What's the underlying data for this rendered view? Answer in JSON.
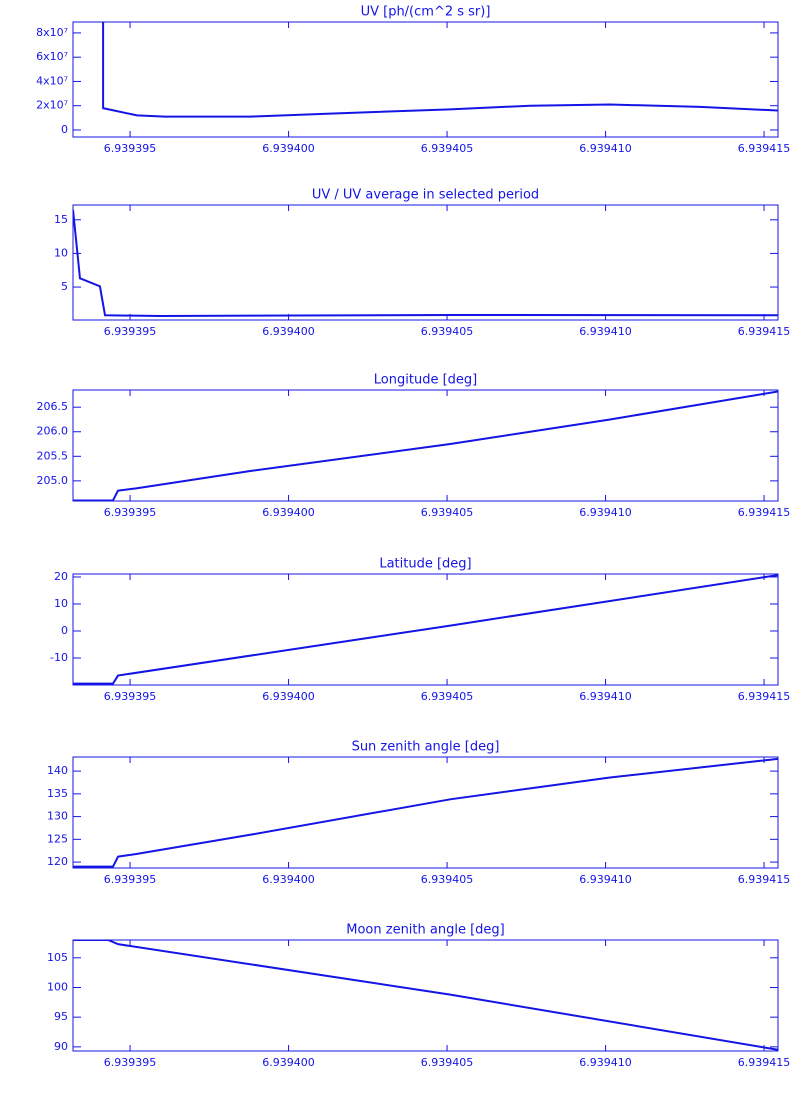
{
  "chart_data": [
    {
      "type": "line",
      "title": "UV [ph/(cm^2 s sr)]",
      "color": "#1414e6",
      "x": [
        6.93939415,
        6.93939415,
        6.93939522,
        6.9393961,
        6.93939879,
        6.93940131,
        6.9394051,
        6.93940762,
        6.93941014,
        6.93941298,
        6.93941544
      ],
      "values": [
        89000000,
        18000000,
        12000000,
        11000000,
        11000000,
        13500000,
        17000000,
        20000000,
        21000000,
        19000000,
        16000000
      ],
      "xlim": [
        6.9393932,
        6.93941544
      ],
      "xticks": [
        6.939395,
        {
          "value": 6.9394,
          "label": "6.939400"
        },
        6.939405,
        {
          "value": 6.93941,
          "label": "6.939410"
        },
        6.939415
      ],
      "ylim": [
        -5800000,
        89000000
      ],
      "yticks": [
        0,
        {
          "value": 20000000,
          "label": "2x10⁷"
        },
        {
          "value": 40000000,
          "label": "4x10⁷"
        },
        {
          "value": 60000000,
          "label": "6x10⁷"
        },
        {
          "value": 80000000,
          "label": "8x10⁷"
        }
      ]
    },
    {
      "type": "line",
      "title": "UV / UV average in selected period",
      "color": "#1414e6",
      "x": [
        6.9393932,
        6.93939342,
        6.93939405,
        6.93939421,
        6.93939595,
        6.9394051,
        6.93941544
      ],
      "values": [
        16.5,
        6.3,
        5.1,
        0.8,
        0.7,
        0.85,
        0.8
      ],
      "xlim": [
        6.9393932,
        6.93941544
      ],
      "xticks": [
        6.939395,
        {
          "value": 6.9394,
          "label": "6.939400"
        },
        6.939405,
        {
          "value": 6.93941,
          "label": "6.939410"
        },
        6.939415
      ],
      "ylim": [
        0.1,
        17.2
      ],
      "yticks": [
        5,
        10,
        15
      ]
    },
    {
      "type": "line",
      "title": "Longitude [deg]",
      "color": "#1414e6",
      "x": [
        6.9393932,
        6.93939446,
        6.93939462,
        6.93939522,
        6.93939879,
        6.9394051,
        6.93940762,
        6.93941014,
        6.93941544
      ],
      "values": [
        204.6,
        204.6,
        204.8,
        204.85,
        205.2,
        205.75,
        206.0,
        206.25,
        206.82
      ],
      "xlim": [
        6.9393932,
        6.93941544
      ],
      "xticks": [
        6.939395,
        {
          "value": 6.9394,
          "label": "6.939400"
        },
        6.939405,
        {
          "value": 6.93941,
          "label": "6.939410"
        },
        6.939415
      ],
      "ylim": [
        204.59,
        206.85
      ],
      "yticks": [
        {
          "value": 205,
          "label": "205.0"
        },
        205.5,
        {
          "value": 206,
          "label": "206.0"
        },
        206.5
      ]
    },
    {
      "type": "line",
      "title": "Latitude [deg]",
      "color": "#1414e6",
      "x": [
        6.9393932,
        6.93939446,
        6.93939462,
        6.9394051,
        6.93941544
      ],
      "values": [
        -19.5,
        -19.5,
        -16.5,
        2,
        20.7
      ],
      "xlim": [
        6.9393932,
        6.93941544
      ],
      "xticks": [
        6.939395,
        {
          "value": 6.9394,
          "label": "6.939400"
        },
        6.939405,
        {
          "value": 6.93941,
          "label": "6.939410"
        },
        6.939415
      ],
      "ylim": [
        -20,
        21.1
      ],
      "yticks": [
        -10,
        0,
        10,
        20
      ]
    },
    {
      "type": "line",
      "title": "Sun zenith angle [deg]",
      "color": "#1414e6",
      "x": [
        6.9393932,
        6.93939446,
        6.93939462,
        6.93939522,
        6.93939879,
        6.9394051,
        6.93941014,
        6.93941544
      ],
      "values": [
        119,
        119,
        121.2,
        121.8,
        126,
        133.8,
        138.6,
        142.7
      ],
      "xlim": [
        6.9393932,
        6.93941544
      ],
      "xticks": [
        6.939395,
        {
          "value": 6.9394,
          "label": "6.939400"
        },
        6.939405,
        {
          "value": 6.93941,
          "label": "6.939410"
        },
        6.939415
      ],
      "ylim": [
        118.7,
        143.1
      ],
      "yticks": [
        120,
        125,
        130,
        135,
        140
      ]
    },
    {
      "type": "line",
      "title": "Moon zenith angle [deg]",
      "color": "#1414e6",
      "x": [
        6.9393932,
        6.93939431,
        6.93939462,
        6.9394051,
        6.93941544
      ],
      "values": [
        108.0,
        108.0,
        107.3,
        98.8,
        89.5
      ],
      "xlim": [
        6.9393932,
        6.93941544
      ],
      "xticks": [
        6.939395,
        {
          "value": 6.9394,
          "label": "6.939400"
        },
        6.939405,
        {
          "value": 6.93941,
          "label": "6.939410"
        },
        6.939415
      ],
      "ylim": [
        89.3,
        108.0
      ],
      "yticks": [
        90,
        95,
        100,
        105
      ]
    }
  ]
}
